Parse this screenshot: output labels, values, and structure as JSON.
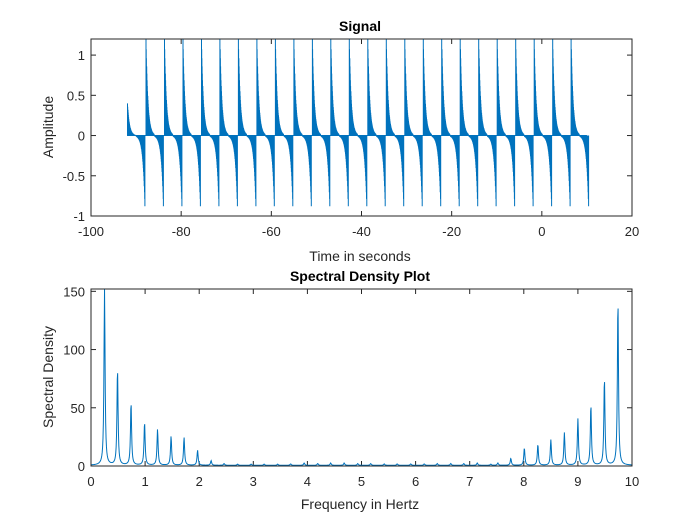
{
  "chart_data": [
    {
      "type": "line",
      "title": "Signal",
      "xlabel": "Time in seconds",
      "ylabel": "Amplitude",
      "xlim": [
        -100,
        20
      ],
      "ylim": [
        -1,
        1.2
      ],
      "xticks": [
        "-100",
        "-80",
        "-60",
        "-40",
        "-20",
        "0",
        "20"
      ],
      "xtick_values": [
        -100,
        -80,
        -60,
        -40,
        -20,
        0,
        20
      ],
      "yticks": [
        "-1",
        "-0.5",
        "0",
        "0.5",
        "1"
      ],
      "ytick_values": [
        -1,
        -0.5,
        0,
        0.5,
        1
      ],
      "grid": false,
      "series": [
        {
          "color": "#0072BD",
          "signal_start": -92,
          "signal_end": 10,
          "burst_period": 4.1,
          "peak_positive": 1.2,
          "peak_negative": -0.88,
          "first_burst_positive": 0.4
        }
      ]
    },
    {
      "type": "line",
      "title": "Spectral Density Plot",
      "xlabel": "Frequency in Hertz",
      "ylabel": "Spectral Density",
      "xlim": [
        0,
        10
      ],
      "ylim": [
        0,
        152
      ],
      "xticks": [
        "0",
        "1",
        "2",
        "3",
        "4",
        "5",
        "6",
        "7",
        "8",
        "9",
        "10"
      ],
      "xtick_values": [
        0,
        1,
        2,
        3,
        4,
        5,
        6,
        7,
        8,
        9,
        10
      ],
      "yticks": [
        "0",
        "50",
        "100",
        "150"
      ],
      "ytick_values": [
        0,
        50,
        100,
        150
      ],
      "grid": false,
      "series": [
        {
          "color": "#0072BD",
          "peaks": [
            [
              0.25,
              152
            ],
            [
              0.49,
              83
            ],
            [
              0.74,
              54
            ],
            [
              0.99,
              37
            ],
            [
              1.23,
              31
            ],
            [
              1.48,
              25
            ],
            [
              1.72,
              24
            ],
            [
              1.97,
              13
            ],
            [
              2.22,
              4
            ],
            [
              2.46,
              1.5
            ],
            [
              2.71,
              1
            ],
            [
              2.96,
              1
            ],
            [
              3.2,
              1
            ],
            [
              3.45,
              1
            ],
            [
              3.69,
              1.2
            ],
            [
              3.94,
              2
            ],
            [
              4.19,
              1.5
            ],
            [
              4.43,
              2
            ],
            [
              4.68,
              2
            ],
            [
              4.93,
              1.5
            ],
            [
              5.17,
              1.5
            ],
            [
              5.42,
              1.2
            ],
            [
              5.66,
              1.2
            ],
            [
              5.91,
              1.2
            ],
            [
              6.16,
              1.2
            ],
            [
              6.4,
              1.5
            ],
            [
              6.65,
              1.5
            ],
            [
              6.89,
              1.5
            ],
            [
              7.14,
              2
            ],
            [
              7.39,
              1
            ],
            [
              7.52,
              2
            ],
            [
              7.76,
              6
            ],
            [
              8.01,
              15
            ],
            [
              8.26,
              18
            ],
            [
              8.5,
              22
            ],
            [
              8.75,
              28
            ],
            [
              9.0,
              40
            ],
            [
              9.24,
              52
            ],
            [
              9.49,
              75
            ],
            [
              9.74,
              142
            ]
          ]
        }
      ]
    }
  ]
}
